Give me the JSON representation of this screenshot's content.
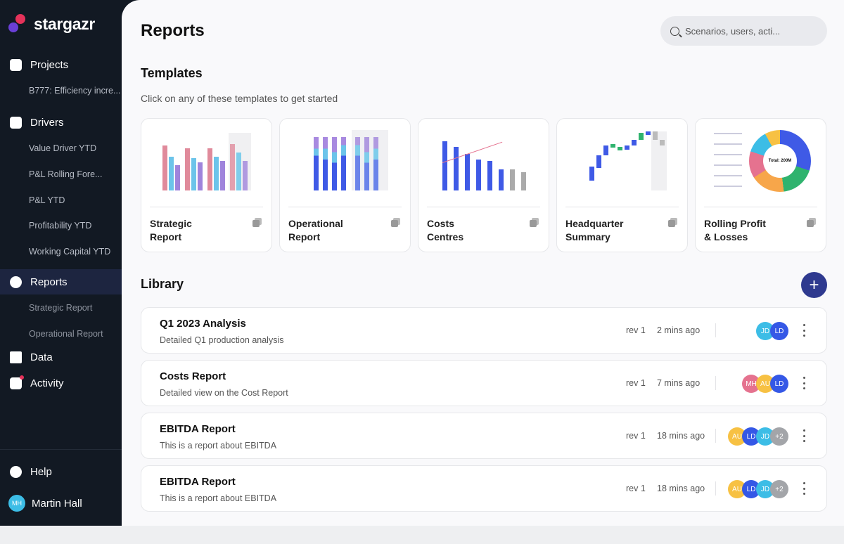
{
  "brand": {
    "name": "stargazr"
  },
  "sidebar": {
    "projects": {
      "label": "Projects",
      "items": [
        "B777: Efficiency incre..."
      ]
    },
    "drivers": {
      "label": "Drivers",
      "items": [
        "Value Driver YTD",
        "P&L Rolling Fore...",
        "P&L YTD",
        "Profitability YTD",
        "Working Capital YTD"
      ]
    },
    "reports": {
      "label": "Reports",
      "items": [
        "Strategic Report",
        "Operational Report"
      ]
    },
    "data": {
      "label": "Data"
    },
    "activity": {
      "label": "Activity"
    },
    "help": {
      "label": "Help"
    },
    "user": {
      "name": "Martin Hall",
      "initials": "MH"
    }
  },
  "header": {
    "title": "Reports",
    "search_placeholder": "Scenarios, users, acti..."
  },
  "templates": {
    "title": "Templates",
    "subtitle": "Click on any of these templates to get started",
    "items": [
      {
        "line1": "Strategic",
        "line2": "Report"
      },
      {
        "line1": "Operational",
        "line2": "Report"
      },
      {
        "line1": "Costs",
        "line2": "Centres"
      },
      {
        "line1": "Headquarter",
        "line2": "Summary"
      },
      {
        "line1": "Rolling Profit",
        "line2": "& Losses"
      }
    ],
    "donut_label": "Total: 200M"
  },
  "library": {
    "title": "Library",
    "add_label": "+",
    "rows": [
      {
        "title": "Q1 2023 Analysis",
        "desc": "Detailed Q1 production analysis",
        "rev": "rev 1",
        "time": "2 mins ago",
        "avatars": [
          "JD",
          "LD"
        ]
      },
      {
        "title": "Costs Report",
        "desc": "Detailed view on the Cost Report",
        "rev": "rev 1",
        "time": "7 mins ago",
        "avatars": [
          "MH",
          "AU",
          "LD"
        ]
      },
      {
        "title": "EBITDA Report",
        "desc": "This is a report about EBITDA",
        "rev": "rev 1",
        "time": "18 mins ago",
        "avatars": [
          "AU",
          "LD",
          "JD",
          "+2"
        ]
      },
      {
        "title": "EBITDA Report",
        "desc": "This is a report about EBITDA",
        "rev": "rev 1",
        "time": "18 mins ago",
        "avatars": [
          "AU",
          "LD",
          "JD",
          "+2"
        ]
      }
    ]
  },
  "colors": {
    "JD": "#3cbde6",
    "LD": "#3558e6",
    "MH": "#e5728f",
    "AU": "#f7c143",
    "+2": "#a3a5a9",
    "accent": "#2f3a8f"
  }
}
